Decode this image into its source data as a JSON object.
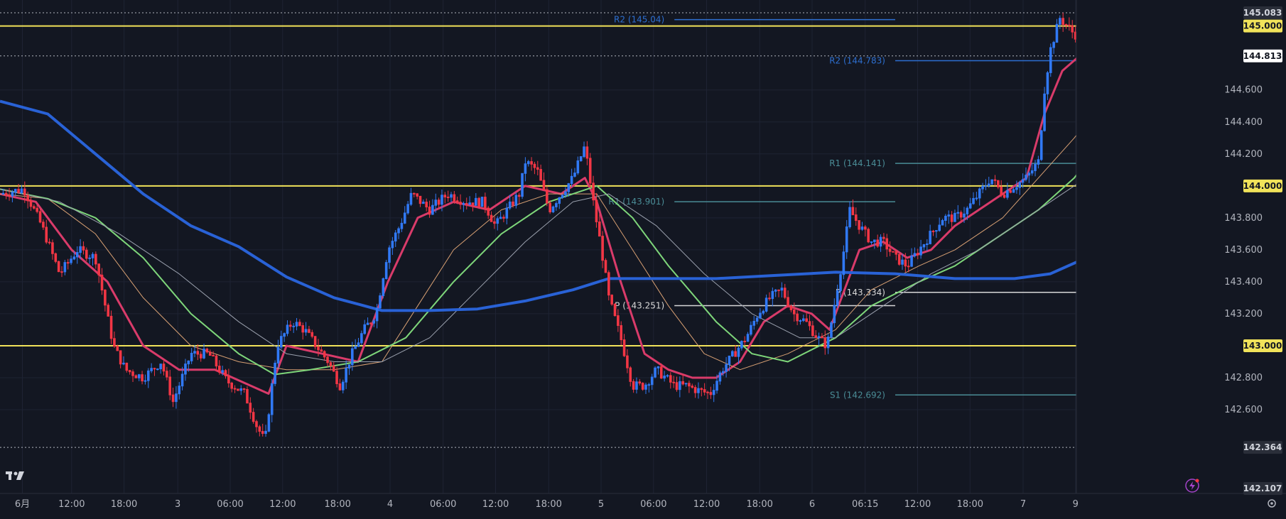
{
  "chart_data": {
    "type": "candlestick",
    "title": "",
    "xlabel": "",
    "ylabel": "",
    "ylim": [
      142.05,
      145.12
    ],
    "grid": true,
    "x_tick_labels": [
      "6月",
      "12:00",
      "18:00",
      "3",
      "06:00",
      "12:00",
      "18:00",
      "4",
      "06:00",
      "12:00",
      "18:00",
      "5",
      "06:00",
      "12:00",
      "18:00",
      "6",
      "06:15",
      "12:00",
      "18:00",
      "7",
      "9"
    ],
    "y_tick_labels": [
      {
        "price": 144.6,
        "label": "144.600"
      },
      {
        "price": 144.4,
        "label": "144.400"
      },
      {
        "price": 144.2,
        "label": "144.200"
      },
      {
        "price": 143.8,
        "label": "143.800"
      },
      {
        "price": 143.6,
        "label": "143.600"
      },
      {
        "price": 143.4,
        "label": "143.400"
      },
      {
        "price": 143.2,
        "label": "143.200"
      },
      {
        "price": 142.8,
        "label": "142.800"
      },
      {
        "price": 142.6,
        "label": "142.600"
      }
    ],
    "price_badges": [
      {
        "price": 145.083,
        "label": "145.083",
        "style": "dark"
      },
      {
        "price": 145.0,
        "label": "145.000",
        "style": "yellow"
      },
      {
        "price": 144.813,
        "label": "144.813",
        "style": "white"
      },
      {
        "price": 144.0,
        "label": "144.000",
        "style": "yellow"
      },
      {
        "price": 143.0,
        "label": "143.000",
        "style": "yellow"
      },
      {
        "price": 142.364,
        "label": "142.364",
        "style": "dark"
      },
      {
        "price": 142.107,
        "label": "142.107",
        "style": "dark"
      }
    ],
    "horizontal_lines": [
      145.0,
      144.0,
      143.0
    ],
    "dotted_lines": [
      145.083,
      144.813,
      142.364
    ],
    "pivot_levels": [
      {
        "label": "R2 (145.04)",
        "price": 145.04,
        "color": "#2d6fd0",
        "from": 0.565,
        "to": 0.75
      },
      {
        "label": "R1 (143.901)",
        "price": 143.901,
        "color": "#4a8c96",
        "from": 0.565,
        "to": 0.75
      },
      {
        "label": "P (143.251)",
        "price": 143.251,
        "color": "#d8d8d8",
        "from": 0.565,
        "to": 0.75
      },
      {
        "label": "R2 (144.783)",
        "price": 144.783,
        "color": "#2d6fd0",
        "from": 0.75,
        "to": 0.93
      },
      {
        "label": "R1 (144.141)",
        "price": 144.141,
        "color": "#4a8c96",
        "from": 0.75,
        "to": 0.93
      },
      {
        "label": "P (143.334)",
        "price": 143.334,
        "color": "#d8d8d8",
        "from": 0.75,
        "to": 0.93
      },
      {
        "label": "S1 (142.692)",
        "price": 142.692,
        "color": "#4a8c96",
        "from": 0.75,
        "to": 0.93
      }
    ],
    "close_path": [
      [
        0.0,
        143.95
      ],
      [
        0.02,
        143.98
      ],
      [
        0.035,
        143.75
      ],
      [
        0.05,
        143.45
      ],
      [
        0.065,
        143.6
      ],
      [
        0.08,
        143.55
      ],
      [
        0.095,
        143.0
      ],
      [
        0.105,
        142.85
      ],
      [
        0.12,
        142.8
      ],
      [
        0.135,
        142.9
      ],
      [
        0.145,
        142.65
      ],
      [
        0.16,
        142.95
      ],
      [
        0.175,
        142.95
      ],
      [
        0.19,
        142.78
      ],
      [
        0.205,
        142.7
      ],
      [
        0.215,
        142.5
      ],
      [
        0.222,
        142.4
      ],
      [
        0.232,
        143.0
      ],
      [
        0.245,
        143.15
      ],
      [
        0.255,
        143.1
      ],
      [
        0.265,
        143.0
      ],
      [
        0.275,
        142.9
      ],
      [
        0.285,
        142.75
      ],
      [
        0.295,
        142.95
      ],
      [
        0.305,
        143.1
      ],
      [
        0.315,
        143.2
      ],
      [
        0.325,
        143.6
      ],
      [
        0.335,
        143.75
      ],
      [
        0.345,
        143.95
      ],
      [
        0.36,
        143.85
      ],
      [
        0.375,
        143.95
      ],
      [
        0.39,
        143.9
      ],
      [
        0.405,
        143.9
      ],
      [
        0.415,
        143.75
      ],
      [
        0.425,
        143.85
      ],
      [
        0.435,
        143.95
      ],
      [
        0.44,
        144.15
      ],
      [
        0.45,
        144.1
      ],
      [
        0.46,
        143.85
      ],
      [
        0.47,
        143.95
      ],
      [
        0.48,
        144.05
      ],
      [
        0.49,
        144.25
      ],
      [
        0.498,
        143.85
      ],
      [
        0.504,
        143.6
      ],
      [
        0.51,
        143.3
      ],
      [
        0.52,
        143.05
      ],
      [
        0.53,
        142.75
      ],
      [
        0.54,
        142.75
      ],
      [
        0.55,
        142.85
      ],
      [
        0.565,
        142.75
      ],
      [
        0.575,
        142.75
      ],
      [
        0.585,
        142.72
      ],
      [
        0.595,
        142.7
      ],
      [
        0.605,
        142.85
      ],
      [
        0.615,
        142.95
      ],
      [
        0.625,
        143.05
      ],
      [
        0.635,
        143.2
      ],
      [
        0.645,
        143.3
      ],
      [
        0.655,
        143.35
      ],
      [
        0.665,
        143.2
      ],
      [
        0.675,
        143.15
      ],
      [
        0.685,
        143.05
      ],
      [
        0.693,
        143.0
      ],
      [
        0.7,
        143.3
      ],
      [
        0.706,
        143.55
      ],
      [
        0.712,
        143.85
      ],
      [
        0.72,
        143.75
      ],
      [
        0.73,
        143.65
      ],
      [
        0.74,
        143.65
      ],
      [
        0.75,
        143.55
      ],
      [
        0.76,
        143.5
      ],
      [
        0.77,
        143.6
      ],
      [
        0.78,
        143.7
      ],
      [
        0.79,
        143.8
      ],
      [
        0.8,
        143.8
      ],
      [
        0.81,
        143.85
      ],
      [
        0.82,
        143.95
      ],
      [
        0.83,
        144.05
      ],
      [
        0.84,
        143.95
      ],
      [
        0.85,
        144.0
      ],
      [
        0.86,
        144.05
      ],
      [
        0.87,
        144.15
      ],
      [
        0.875,
        144.6
      ],
      [
        0.88,
        144.85
      ],
      [
        0.888,
        145.05
      ],
      [
        0.9,
        144.95
      ],
      [
        0.915,
        144.9
      ],
      [
        0.925,
        144.82
      ],
      [
        0.932,
        144.82
      ]
    ],
    "series": [
      {
        "color": "#d93b6a",
        "width": 3,
        "points": [
          [
            0.0,
            143.95
          ],
          [
            0.03,
            143.9
          ],
          [
            0.06,
            143.6
          ],
          [
            0.09,
            143.4
          ],
          [
            0.12,
            143.0
          ],
          [
            0.15,
            142.85
          ],
          [
            0.18,
            142.85
          ],
          [
            0.21,
            142.75
          ],
          [
            0.225,
            142.7
          ],
          [
            0.24,
            143.0
          ],
          [
            0.27,
            142.95
          ],
          [
            0.3,
            142.9
          ],
          [
            0.325,
            143.4
          ],
          [
            0.35,
            143.8
          ],
          [
            0.38,
            143.9
          ],
          [
            0.41,
            143.85
          ],
          [
            0.44,
            144.0
          ],
          [
            0.47,
            143.95
          ],
          [
            0.49,
            144.05
          ],
          [
            0.5,
            143.9
          ],
          [
            0.52,
            143.4
          ],
          [
            0.54,
            142.95
          ],
          [
            0.56,
            142.85
          ],
          [
            0.58,
            142.8
          ],
          [
            0.6,
            142.8
          ],
          [
            0.62,
            142.9
          ],
          [
            0.64,
            143.15
          ],
          [
            0.66,
            143.25
          ],
          [
            0.68,
            143.2
          ],
          [
            0.695,
            143.1
          ],
          [
            0.705,
            143.3
          ],
          [
            0.72,
            143.6
          ],
          [
            0.74,
            143.65
          ],
          [
            0.76,
            143.55
          ],
          [
            0.78,
            143.6
          ],
          [
            0.8,
            143.75
          ],
          [
            0.82,
            143.85
          ],
          [
            0.84,
            143.95
          ],
          [
            0.86,
            144.05
          ],
          [
            0.875,
            144.45
          ],
          [
            0.89,
            144.72
          ],
          [
            0.91,
            144.85
          ],
          [
            0.932,
            144.82
          ]
        ]
      },
      {
        "color": "#d8a073",
        "width": 1,
        "points": [
          [
            0.0,
            143.95
          ],
          [
            0.04,
            143.92
          ],
          [
            0.08,
            143.7
          ],
          [
            0.12,
            143.3
          ],
          [
            0.16,
            143.0
          ],
          [
            0.2,
            142.9
          ],
          [
            0.24,
            142.85
          ],
          [
            0.28,
            142.85
          ],
          [
            0.32,
            142.9
          ],
          [
            0.35,
            143.25
          ],
          [
            0.38,
            143.6
          ],
          [
            0.42,
            143.85
          ],
          [
            0.46,
            143.95
          ],
          [
            0.5,
            143.95
          ],
          [
            0.53,
            143.6
          ],
          [
            0.56,
            143.25
          ],
          [
            0.59,
            142.95
          ],
          [
            0.62,
            142.85
          ],
          [
            0.66,
            142.95
          ],
          [
            0.7,
            143.1
          ],
          [
            0.73,
            143.35
          ],
          [
            0.77,
            143.5
          ],
          [
            0.8,
            143.6
          ],
          [
            0.84,
            143.8
          ],
          [
            0.87,
            144.05
          ],
          [
            0.9,
            144.3
          ],
          [
            0.932,
            144.6
          ]
        ]
      },
      {
        "color": "#7ed67a",
        "width": 2,
        "points": [
          [
            0.0,
            143.98
          ],
          [
            0.04,
            143.92
          ],
          [
            0.08,
            143.8
          ],
          [
            0.12,
            143.55
          ],
          [
            0.16,
            143.2
          ],
          [
            0.2,
            142.95
          ],
          [
            0.23,
            142.82
          ],
          [
            0.26,
            142.85
          ],
          [
            0.3,
            142.9
          ],
          [
            0.34,
            143.05
          ],
          [
            0.38,
            143.4
          ],
          [
            0.42,
            143.7
          ],
          [
            0.46,
            143.9
          ],
          [
            0.5,
            144.0
          ],
          [
            0.53,
            143.8
          ],
          [
            0.56,
            143.5
          ],
          [
            0.6,
            143.15
          ],
          [
            0.63,
            142.95
          ],
          [
            0.66,
            142.9
          ],
          [
            0.7,
            143.05
          ],
          [
            0.73,
            143.25
          ],
          [
            0.77,
            143.4
          ],
          [
            0.8,
            143.5
          ],
          [
            0.84,
            143.7
          ],
          [
            0.87,
            143.85
          ],
          [
            0.9,
            144.05
          ],
          [
            0.932,
            144.37
          ]
        ]
      },
      {
        "color": "#9aa0ad",
        "width": 1,
        "points": [
          [
            0.0,
            143.98
          ],
          [
            0.05,
            143.9
          ],
          [
            0.1,
            143.7
          ],
          [
            0.15,
            143.45
          ],
          [
            0.2,
            143.15
          ],
          [
            0.24,
            142.95
          ],
          [
            0.28,
            142.9
          ],
          [
            0.32,
            142.9
          ],
          [
            0.36,
            143.05
          ],
          [
            0.4,
            143.35
          ],
          [
            0.44,
            143.65
          ],
          [
            0.48,
            143.9
          ],
          [
            0.51,
            143.95
          ],
          [
            0.55,
            143.75
          ],
          [
            0.59,
            143.45
          ],
          [
            0.63,
            143.2
          ],
          [
            0.67,
            143.05
          ],
          [
            0.7,
            143.05
          ],
          [
            0.74,
            143.25
          ],
          [
            0.78,
            143.45
          ],
          [
            0.82,
            143.6
          ],
          [
            0.86,
            143.8
          ],
          [
            0.9,
            144.0
          ],
          [
            0.932,
            144.18
          ]
        ]
      },
      {
        "color": "#2962d6",
        "width": 4,
        "points": [
          [
            0.0,
            144.53
          ],
          [
            0.04,
            144.45
          ],
          [
            0.08,
            144.2
          ],
          [
            0.12,
            143.95
          ],
          [
            0.16,
            143.75
          ],
          [
            0.2,
            143.62
          ],
          [
            0.24,
            143.43
          ],
          [
            0.28,
            143.3
          ],
          [
            0.32,
            143.22
          ],
          [
            0.36,
            143.22
          ],
          [
            0.4,
            143.23
          ],
          [
            0.44,
            143.28
          ],
          [
            0.48,
            143.35
          ],
          [
            0.51,
            143.42
          ],
          [
            0.55,
            143.42
          ],
          [
            0.6,
            143.42
          ],
          [
            0.65,
            143.44
          ],
          [
            0.7,
            143.46
          ],
          [
            0.75,
            143.45
          ],
          [
            0.8,
            143.42
          ],
          [
            0.85,
            143.42
          ],
          [
            0.88,
            143.45
          ],
          [
            0.91,
            143.55
          ],
          [
            0.932,
            143.66
          ]
        ]
      }
    ]
  }
}
